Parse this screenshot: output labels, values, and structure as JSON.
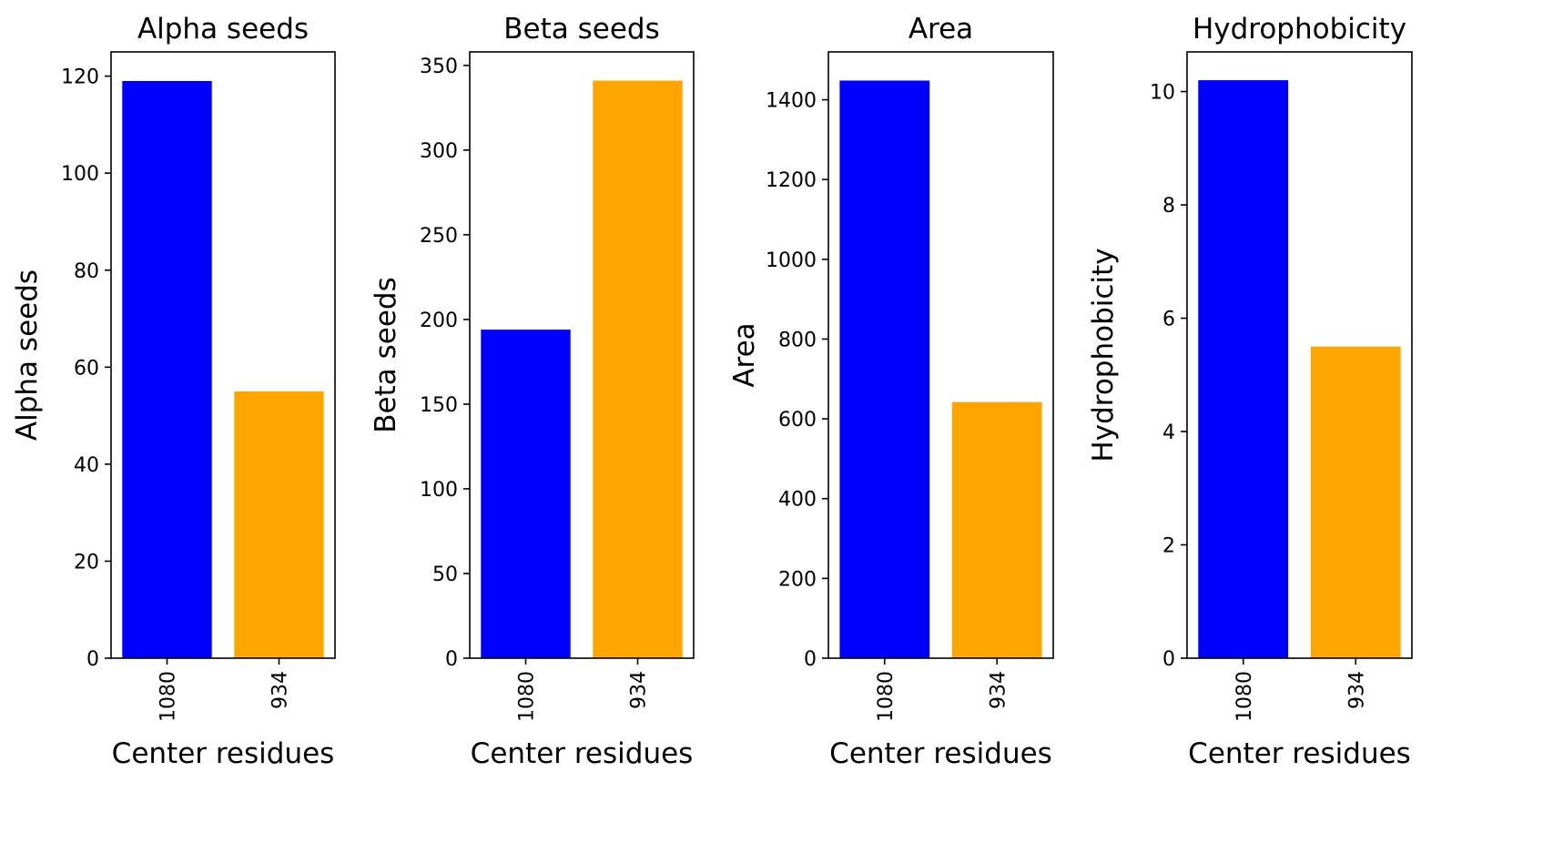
{
  "figure": {
    "background": "#ffffff"
  },
  "chart_data": [
    {
      "type": "bar",
      "title": "Alpha seeds",
      "xlabel": "Center residues",
      "ylabel": "Alpha seeds",
      "categories": [
        "1080",
        "934"
      ],
      "values": [
        119,
        55
      ],
      "colors": [
        "#0000ff",
        "#ffa500"
      ],
      "ylim": [
        0,
        125
      ],
      "yticks": [
        0,
        20,
        40,
        60,
        80,
        100,
        120
      ],
      "grid": false,
      "legend": "none",
      "xtick_rotation": "vertical"
    },
    {
      "type": "bar",
      "title": "Beta seeds",
      "xlabel": "Center residues",
      "ylabel": "Beta seeds",
      "categories": [
        "1080",
        "934"
      ],
      "values": [
        194,
        341
      ],
      "colors": [
        "#0000ff",
        "#ffa500"
      ],
      "ylim": [
        0,
        358
      ],
      "yticks": [
        0,
        50,
        100,
        150,
        200,
        250,
        300,
        350
      ],
      "grid": false,
      "legend": "none",
      "xtick_rotation": "vertical"
    },
    {
      "type": "bar",
      "title": "Area",
      "xlabel": "Center residues",
      "ylabel": "Area",
      "categories": [
        "1080",
        "934"
      ],
      "values": [
        1448,
        642
      ],
      "colors": [
        "#0000ff",
        "#ffa500"
      ],
      "ylim": [
        0,
        1520
      ],
      "yticks": [
        0,
        200,
        400,
        600,
        800,
        1000,
        1200,
        1400
      ],
      "grid": false,
      "legend": "none",
      "xtick_rotation": "vertical"
    },
    {
      "type": "bar",
      "title": "Hydrophobicity",
      "xlabel": "Center residues",
      "ylabel": "Hydrophobicity",
      "categories": [
        "1080",
        "934"
      ],
      "values": [
        10.2,
        5.5
      ],
      "colors": [
        "#0000ff",
        "#ffa500"
      ],
      "ylim": [
        0,
        10.7
      ],
      "yticks": [
        0,
        2,
        4,
        6,
        8,
        10
      ],
      "grid": false,
      "legend": "none",
      "xtick_rotation": "vertical"
    }
  ]
}
